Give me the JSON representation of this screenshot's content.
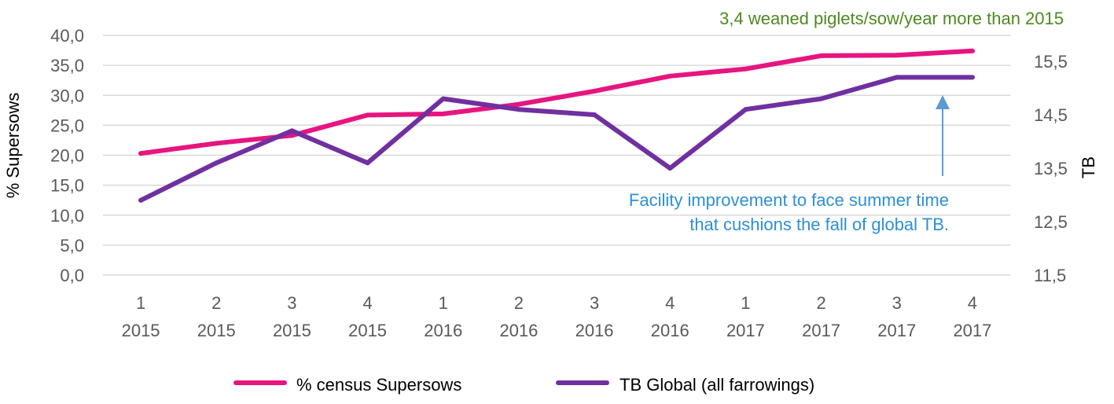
{
  "chart_data": {
    "type": "line",
    "categories": [
      [
        "1",
        "2015"
      ],
      [
        "2",
        "2015"
      ],
      [
        "3",
        "2015"
      ],
      [
        "4",
        "2015"
      ],
      [
        "1",
        "2016"
      ],
      [
        "2",
        "2016"
      ],
      [
        "3",
        "2016"
      ],
      [
        "4",
        "2016"
      ],
      [
        "1",
        "2017"
      ],
      [
        "2",
        "2017"
      ],
      [
        "3",
        "2017"
      ],
      [
        "4",
        "2017"
      ]
    ],
    "series": [
      {
        "name": "% census Supersows",
        "axis": "left",
        "color": "#e6157f",
        "values": [
          20.3,
          22.0,
          23.3,
          26.7,
          26.9,
          28.5,
          30.7,
          33.2,
          34.4,
          36.6,
          36.7,
          37.4
        ]
      },
      {
        "name": "TB Global (all farrowings)",
        "axis": "right",
        "color": "#7030a0",
        "values": [
          12.9,
          13.6,
          14.2,
          13.6,
          14.8,
          14.6,
          14.5,
          13.5,
          14.6,
          14.8,
          15.2,
          15.2
        ]
      }
    ],
    "y_left": {
      "label": "% Supersows",
      "ylim": [
        0,
        40
      ],
      "ticks": [
        "0,0",
        "5,0",
        "10,0",
        "15,0",
        "20,0",
        "25,0",
        "30,0",
        "35,0",
        "40,0"
      ]
    },
    "y_right": {
      "label": "TB",
      "ylim": [
        11.5,
        15.5
      ],
      "ticks": [
        "11,5",
        "12,5",
        "13,5",
        "14,5",
        "15,5"
      ]
    },
    "grid": true,
    "legend": "bottom",
    "annotations": {
      "top": "3,4 weaned piglets/sow/year more than 2015",
      "arrow_line1": "Facility improvement to face summer time",
      "arrow_line2": "that cushions the fall of global TB."
    },
    "colors": {
      "grid": "#d9d9d9",
      "tick_text": "#595959",
      "annotation_green": "#4d8a1f",
      "annotation_blue": "#2e8fd6",
      "arrow": "#5b9bd5"
    }
  }
}
